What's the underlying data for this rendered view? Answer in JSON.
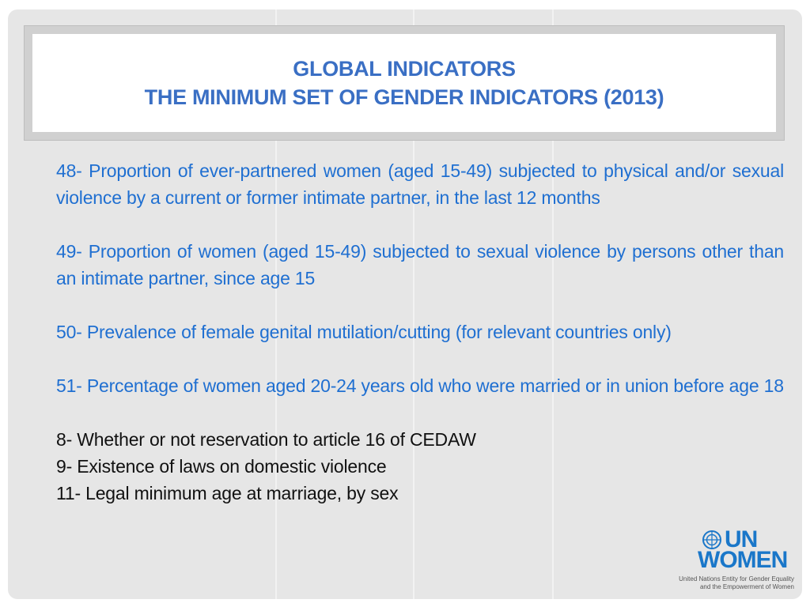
{
  "title": {
    "line1": "GLOBAL INDICATORS",
    "line2": "THE MINIMUM SET OF GENDER INDICATORS (2013)"
  },
  "indicators": [
    "48- Proportion of ever-partnered women (aged 15-49) subjected to physical and/or sexual violence by a current or former intimate partner, in the last 12 months",
    "49- Proportion of women (aged 15-49) subjected to sexual violence by persons other than an intimate partner, since age 15",
    "50- Prevalence of female genital mutilation/cutting (for relevant countries only)",
    "51- Percentage of women aged 20-24 years old who were married or in union before age 18"
  ],
  "qualitative": [
    "8- Whether or not reservation to article 16 of CEDAW",
    "9- Existence of laws on domestic violence",
    "11- Legal minimum age at marriage, by sex"
  ],
  "logo": {
    "top": "UN",
    "bottom": "WOMEN",
    "subline1": "United Nations Entity for Gender Equality",
    "subline2": "and the Empowerment of Women",
    "icon": "un-emblem-icon"
  },
  "colors": {
    "accent": "#3a6fc4",
    "indicator_text": "#1f6fd1",
    "logo_blue": "#1a77c9"
  }
}
